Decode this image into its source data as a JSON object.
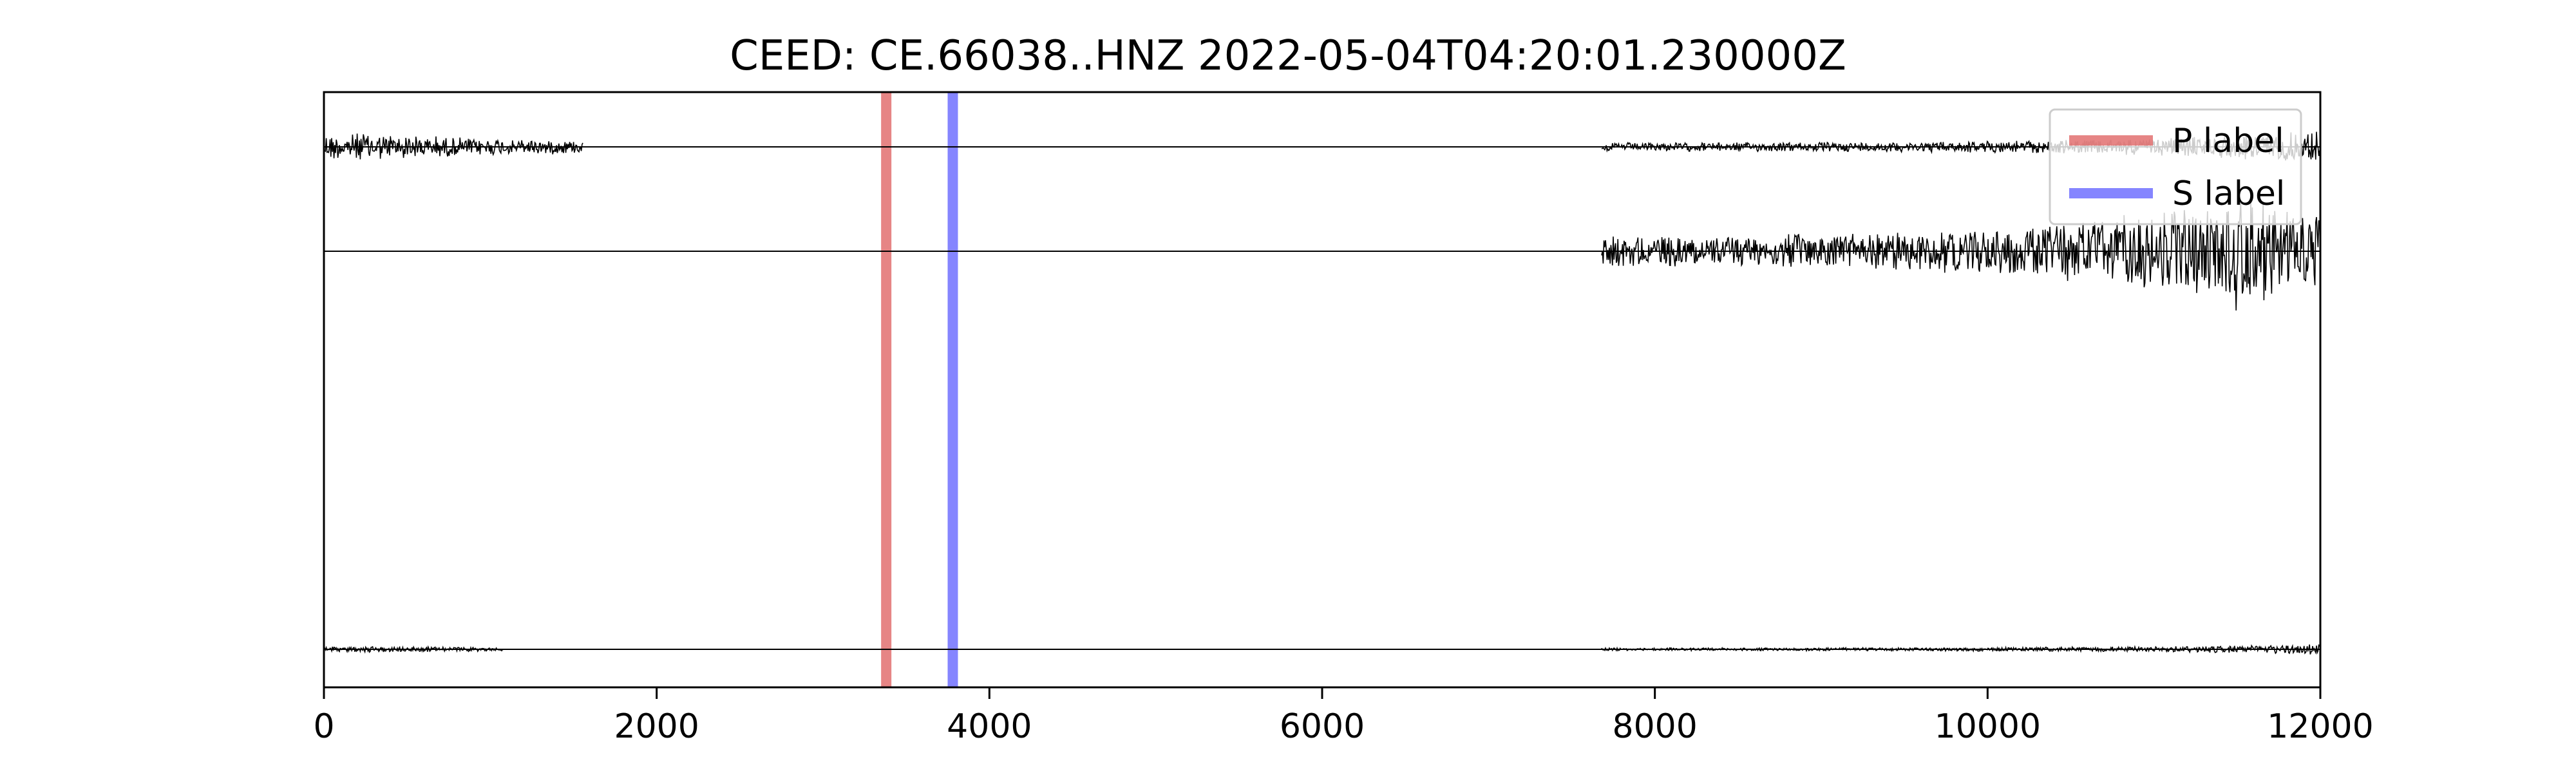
{
  "chart_data": {
    "type": "line",
    "title": "CEED: CE.66038..HNZ 2022-05-04T04:20:01.230000Z",
    "xlabel": "",
    "ylabel": "",
    "xlim": [
      0,
      12000
    ],
    "x_ticks": [
      0,
      2000,
      4000,
      6000,
      8000,
      10000,
      12000
    ],
    "x_tick_labels": [
      "0",
      "2000",
      "4000",
      "6000",
      "8000",
      "10000",
      "12000"
    ],
    "y_ticks_visible": false,
    "grid": false,
    "legend": {
      "placement": "upper-right",
      "entries": [
        {
          "label": "P label",
          "color": "#e06666"
        },
        {
          "label": "S label",
          "color": "#6666ff"
        }
      ]
    },
    "picks": [
      {
        "name": "P label",
        "x": 3380,
        "color": "#e06666"
      },
      {
        "name": "S label",
        "x": 3780,
        "color": "#6666ff"
      }
    ],
    "traces": [
      {
        "color": "#000000",
        "segments": [
          {
            "x_start": 0,
            "x_end": 1560,
            "amplitude": 0.45,
            "peak_at": 200
          },
          {
            "x_start": 7680,
            "x_end": 12000,
            "amplitude": 0.5,
            "peak_at": 11950
          }
        ]
      },
      {
        "color": "#000000",
        "segments": [
          {
            "x_start": 7680,
            "x_end": 12000,
            "amplitude": 1.0,
            "peak_at": 11500
          }
        ]
      },
      {
        "color": "#000000",
        "segments": [
          {
            "x_start": 0,
            "x_end": 1080,
            "amplitude": 0.15,
            "peak_at": 300
          },
          {
            "x_start": 7680,
            "x_end": 12000,
            "amplitude": 0.25,
            "peak_at": 11950
          }
        ]
      }
    ]
  }
}
